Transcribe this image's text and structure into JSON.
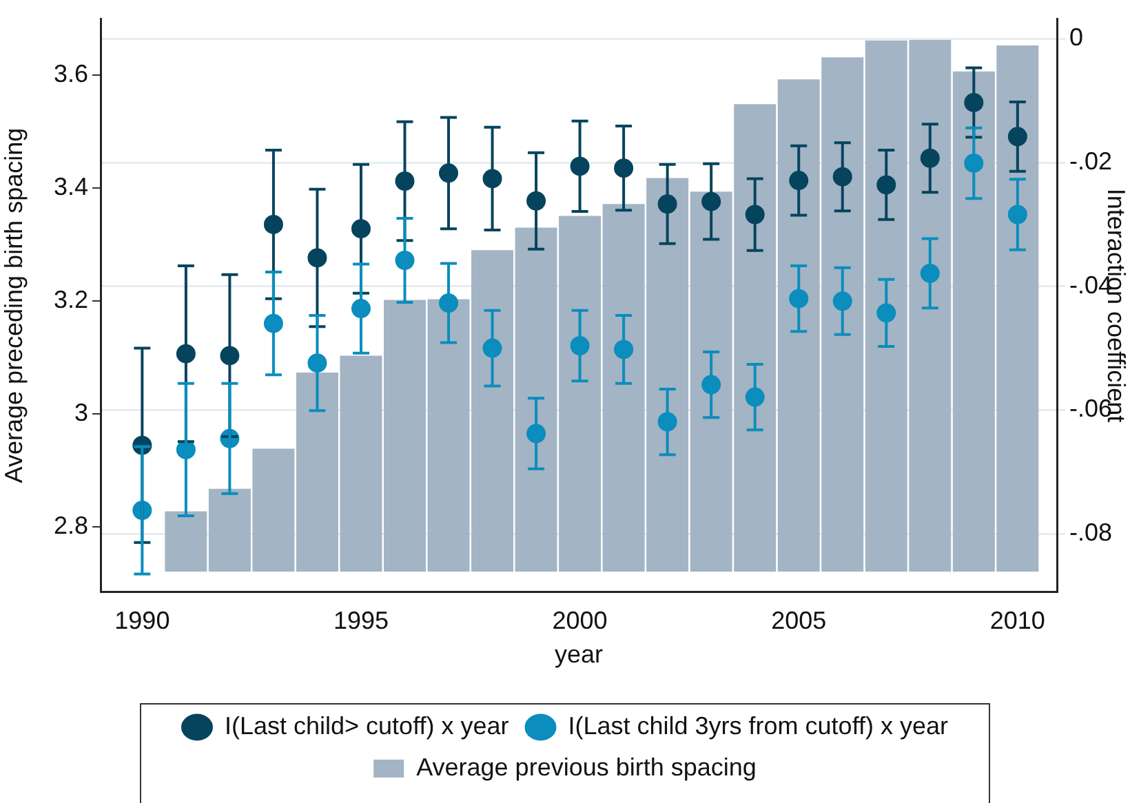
{
  "chart_data": {
    "type": "scatter",
    "xlabel": "year",
    "ylabel": "Average preceding birth spacing",
    "y2label": "Interaction coefficient",
    "x": [
      1990,
      1991,
      1992,
      1993,
      1994,
      1995,
      1996,
      1997,
      1998,
      1999,
      2000,
      2001,
      2002,
      2003,
      2004,
      2005,
      2006,
      2007,
      2008,
      2009,
      2010
    ],
    "series": [
      {
        "name": "Average previous birth spacing",
        "type": "bar",
        "axis": "y",
        "color": "#a3b4c4",
        "x": [
          1991,
          1992,
          1993,
          1994,
          1995,
          1996,
          1997,
          1998,
          1999,
          2000,
          2001,
          2002,
          2003,
          2004,
          2005,
          2006,
          2007,
          2008,
          2009,
          2010
        ],
        "base": [
          2.72,
          2.72,
          2.72,
          2.72,
          2.72,
          2.72,
          2.72,
          2.72,
          2.72,
          2.72,
          2.72,
          2.72,
          2.72,
          2.72,
          2.72,
          2.72,
          2.72,
          2.72,
          2.72,
          2.72
        ],
        "values": [
          0.107,
          0.147,
          0.218,
          0.353,
          0.383,
          0.482,
          0.483,
          0.57,
          0.61,
          0.631,
          0.652,
          0.698,
          0.674,
          0.829,
          0.873,
          0.912,
          0.942,
          0.943,
          0.887,
          0.933
        ]
      },
      {
        "name": "I(Last child> cutoff) x year",
        "axis": "y2",
        "color": "#06445e",
        "values": [
          -0.0657,
          -0.0509,
          -0.0512,
          -0.03,
          -0.0354,
          -0.0307,
          -0.023,
          -0.0217,
          -0.0226,
          -0.0262,
          -0.0206,
          -0.0209,
          -0.0267,
          -0.0263,
          -0.0284,
          -0.0229,
          -0.0223,
          -0.0236,
          -0.0193,
          -0.0103,
          -0.0158
        ],
        "errors": [
          0.0157,
          0.0142,
          0.0131,
          0.012,
          0.0111,
          0.0104,
          0.0096,
          0.009,
          0.0083,
          0.0078,
          0.0073,
          0.0068,
          0.0064,
          0.0061,
          0.0058,
          0.0056,
          0.0055,
          0.0056,
          0.0055,
          0.0056,
          0.0056
        ]
      },
      {
        "name": "I(Last child 3yrs from cutoff) x year",
        "axis": "y2",
        "color": "#0b8dbd",
        "values": [
          -0.0762,
          -0.0664,
          -0.0646,
          -0.046,
          -0.0524,
          -0.0436,
          -0.0358,
          -0.0427,
          -0.05,
          -0.0638,
          -0.0496,
          -0.0502,
          -0.0619,
          -0.0559,
          -0.0579,
          -0.042,
          -0.0424,
          -0.0443,
          -0.0379,
          -0.0201,
          -0.0284
        ],
        "errors": [
          0.0103,
          0.0107,
          0.0089,
          0.0083,
          0.0077,
          0.0072,
          0.0068,
          0.0064,
          0.0061,
          0.0057,
          0.0057,
          0.0055,
          0.0053,
          0.0053,
          0.0053,
          0.0053,
          0.0054,
          0.0054,
          0.0056,
          0.0057,
          0.0057
        ]
      }
    ],
    "xlim": [
      1989.05,
      2010.9
    ],
    "xticks": [
      1990,
      1995,
      2000,
      2005,
      2010
    ],
    "ylim": [
      2.684,
      3.7
    ],
    "yticks": [
      2.8,
      3,
      3.2,
      3.4,
      3.6
    ],
    "y2lim": [
      -0.0894,
      0.0032
    ],
    "y2ticks": [
      {
        "value": -0.08,
        "label": "-.08"
      },
      {
        "value": -0.06,
        "label": "-.06"
      },
      {
        "value": -0.04,
        "label": "-.04"
      },
      {
        "value": -0.02,
        "label": "-.02"
      },
      0
    ],
    "grid": "y",
    "legend": "bottom",
    "marker": "circle"
  }
}
